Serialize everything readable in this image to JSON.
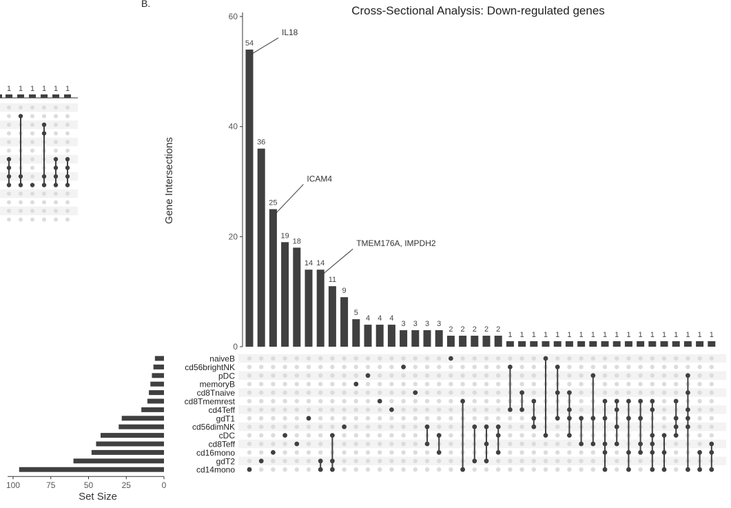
{
  "panel_letter": "B.",
  "chart_data": {
    "type": "upset",
    "title": "Cross-Sectional Analysis: Down-regulated genes",
    "ylabel": "Gene Intersections",
    "ylim": [
      0,
      60
    ],
    "yticks": [
      0,
      20,
      40,
      60
    ],
    "intersections": [
      54,
      36,
      25,
      19,
      18,
      14,
      14,
      11,
      9,
      5,
      4,
      4,
      4,
      3,
      3,
      3,
      3,
      2,
      2,
      2,
      2,
      2,
      1,
      1,
      1,
      1,
      1,
      1,
      1,
      1,
      1,
      1,
      1,
      1,
      1,
      1,
      1,
      1,
      1,
      1
    ],
    "memberships": [
      [
        "cd14mono"
      ],
      [
        "gdT2"
      ],
      [
        "cd16mono"
      ],
      [
        "cDC"
      ],
      [
        "cd8Teff"
      ],
      [
        "gdT1"
      ],
      [
        "gdT2",
        "cd14mono"
      ],
      [
        "gdT2",
        "cd14mono",
        "cDC"
      ],
      [
        "cd56dimNK"
      ],
      [
        "memoryB"
      ],
      [
        "pDC"
      ],
      [
        "cd8Tmemrest"
      ],
      [
        "cd4Teff"
      ],
      [
        "cd56brightNK"
      ],
      [
        "cd8Tnaive"
      ],
      [
        "cd56dimNK",
        "cd8Teff"
      ],
      [
        "cDC",
        "cd16mono"
      ],
      [
        "naiveB"
      ],
      [
        "cd8Tmemrest",
        "cd14mono"
      ],
      [
        "cd56dimNK",
        "gdT2"
      ],
      [
        "cd56dimNK",
        "cd8Teff",
        "gdT2"
      ],
      [
        "cd56dimNK",
        "cDC",
        "cd16mono"
      ],
      [
        "cd56brightNK",
        "cd4Teff"
      ],
      [
        "cd8Tnaive",
        "cd4Teff"
      ],
      [
        "cd8Tmemrest",
        "gdT1",
        "cd56dimNK"
      ],
      [
        "naiveB",
        "cDC"
      ],
      [
        "cd56brightNK",
        "cd8Tnaive",
        "gdT1"
      ],
      [
        "cd8Tnaive",
        "cd4Teff",
        "gdT1",
        "cDC"
      ],
      [
        "gdT1",
        "cd8Teff"
      ],
      [
        "pDC",
        "gdT1",
        "cd8Teff"
      ],
      [
        "cd8Tmemrest",
        "gdT1",
        "cd8Teff",
        "cd16mono",
        "cd14mono"
      ],
      [
        "cd8Tmemrest",
        "cd4Teff",
        "cd56dimNK",
        "cd8Teff"
      ],
      [
        "cd8Tmemrest",
        "gdT1",
        "cd16mono",
        "cd14mono"
      ],
      [
        "cd8Tmemrest",
        "gdT1",
        "cd8Teff",
        "cd16mono"
      ],
      [
        "cd8Tmemrest",
        "cd4Teff",
        "cDC",
        "cd8Teff",
        "cd16mono",
        "cd14mono"
      ],
      [
        "cDC",
        "cd16mono",
        "cd14mono"
      ],
      [
        "cd8Tmemrest",
        "gdT1",
        "cd56dimNK",
        "cDC"
      ],
      [
        "pDC",
        "cd8Tnaive",
        "cd4Teff",
        "gdT1",
        "cd56dimNK",
        "cd14mono"
      ],
      [
        "cd16mono",
        "cd14mono"
      ],
      [
        "cd8Teff",
        "cd16mono",
        "cd14mono"
      ]
    ],
    "sets": [
      "naiveB",
      "cd56brightNK",
      "pDC",
      "memoryB",
      "cd8Tnaive",
      "cd8Tmemrest",
      "cd4Teff",
      "gdT1",
      "cd56dimNK",
      "cDC",
      "cd8Teff",
      "cd16mono",
      "gdT2",
      "cd14mono"
    ],
    "set_sizes": [
      6,
      7,
      8,
      9,
      10,
      11,
      15,
      28,
      30,
      42,
      45,
      48,
      60,
      96
    ],
    "set_size_label": "Set Size",
    "set_size_ticks": [
      100,
      75,
      50,
      25,
      0
    ],
    "set_size_max": 100,
    "annotations": [
      {
        "text": "IL18",
        "bar": 0
      },
      {
        "text": "ICAM4",
        "bar": 2
      },
      {
        "text": "TMEM176A, IMPDH2",
        "bar": 6
      }
    ],
    "colors": {
      "bar": "#404040",
      "dot_inactive": "#dcdcdc",
      "stripe": "#f3f3f3"
    }
  },
  "partial_panel": {
    "values": [
      1,
      1,
      1,
      1,
      1,
      1
    ],
    "memberships": [
      [
        6,
        7,
        8,
        9
      ],
      [
        1,
        8,
        9
      ],
      [
        9
      ],
      [
        2,
        3,
        8,
        9
      ],
      [
        6,
        7,
        8,
        9
      ],
      [
        6,
        7,
        8,
        9
      ]
    ]
  }
}
